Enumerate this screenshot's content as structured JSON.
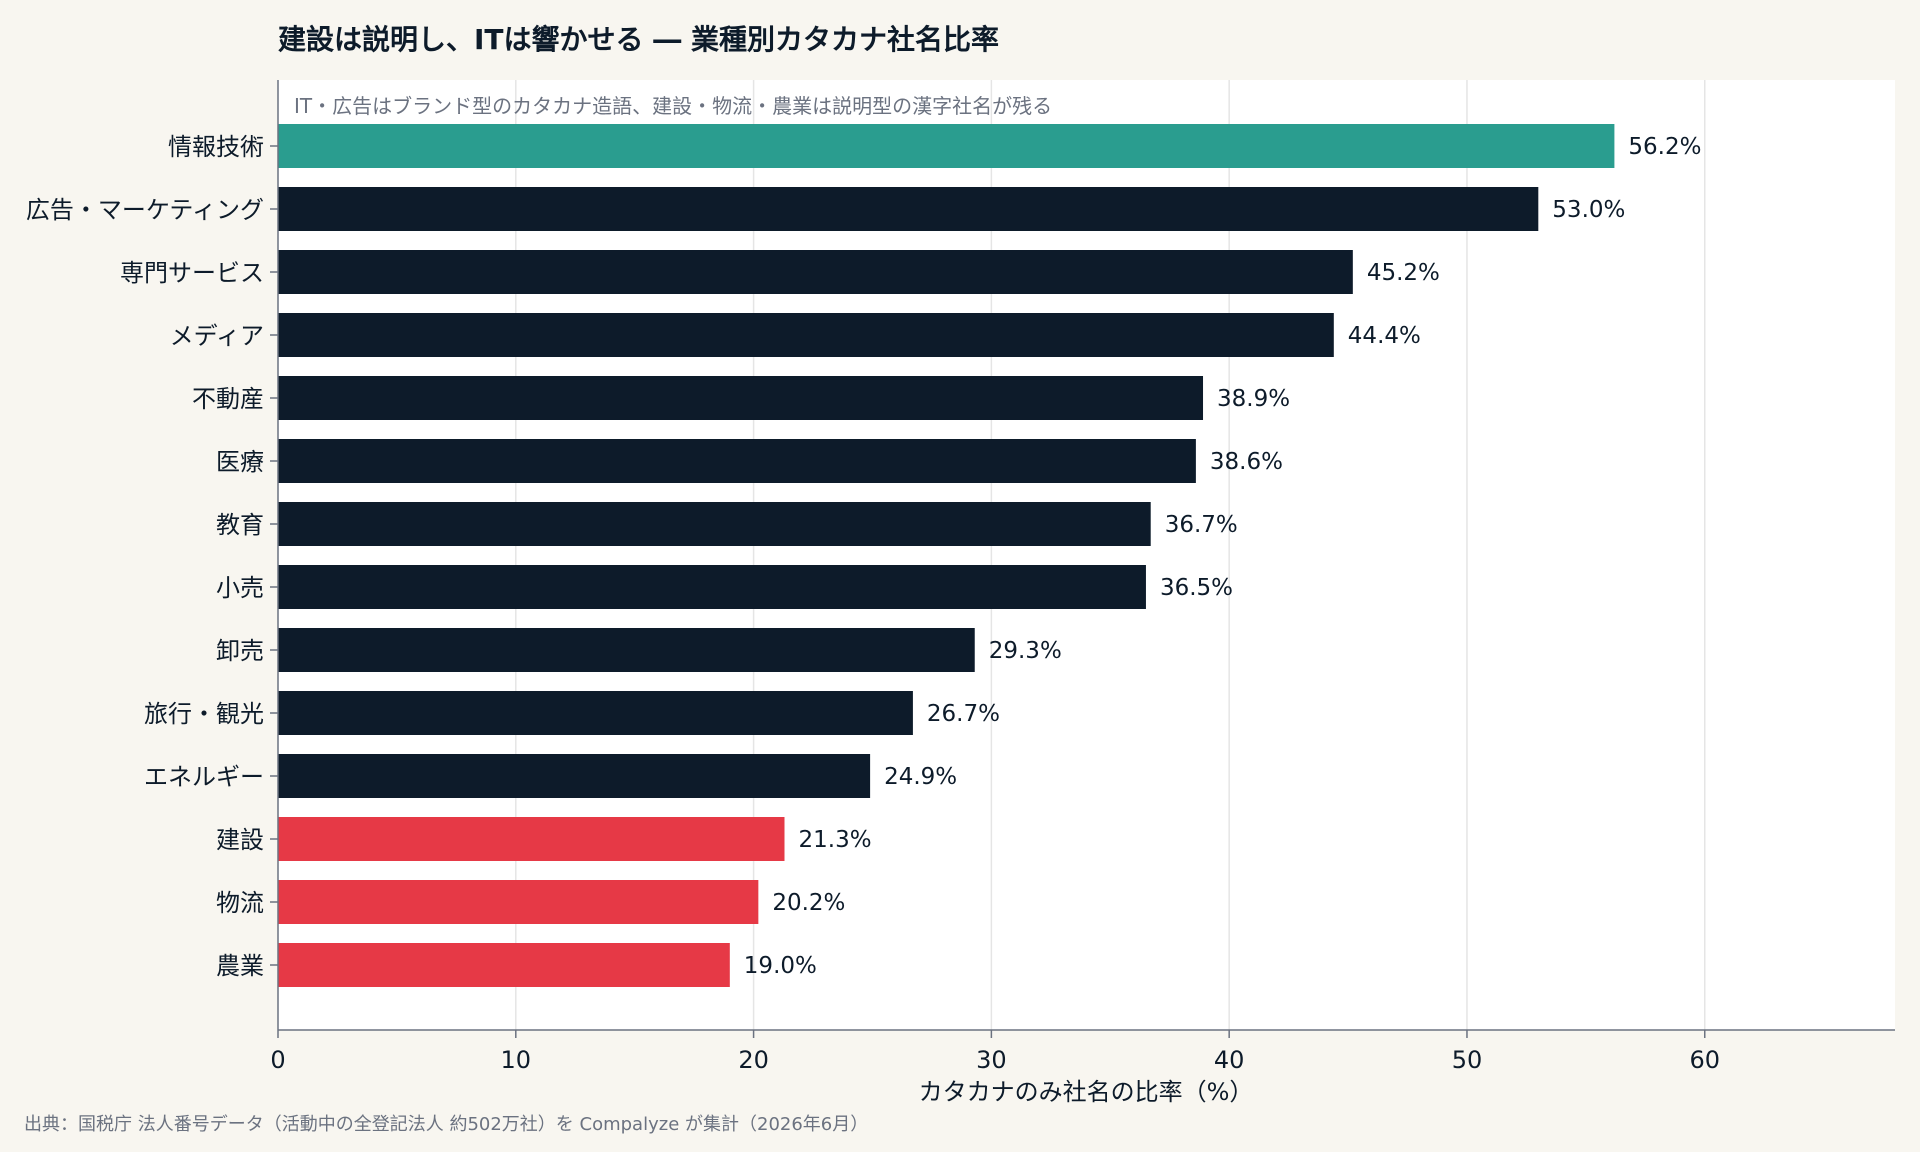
{
  "chart_data": {
    "type": "bar",
    "orientation": "horizontal",
    "title": "建設は説明し、ITは響かせる ― 業種別カタカナ社名比率",
    "subtitle": "IT・広告はブランド型のカタカナ造語、建設・物流・農業は説明型の漢字社名が残る",
    "xlabel": "カタカナのみ社名の比率（%）",
    "ylabel": "",
    "xlim": [
      0,
      68
    ],
    "xticks": [
      0,
      10,
      20,
      30,
      40,
      50,
      60
    ],
    "xtick_labels": [
      "0",
      "10",
      "20",
      "30",
      "40",
      "50",
      "60"
    ],
    "grid": "vertical",
    "categories": [
      "情報技術",
      "広告・マーケティング",
      "専門サービス",
      "メディア",
      "不動産",
      "医療",
      "教育",
      "小売",
      "卸売",
      "旅行・観光",
      "エネルギー",
      "建設",
      "物流",
      "農業"
    ],
    "values": [
      56.2,
      53.0,
      45.2,
      44.4,
      38.9,
      38.6,
      36.7,
      36.5,
      29.3,
      26.7,
      24.9,
      21.3,
      20.2,
      19.0
    ],
    "value_labels": [
      "56.2%",
      "53.0%",
      "45.2%",
      "44.4%",
      "38.9%",
      "38.6%",
      "36.7%",
      "36.5%",
      "29.3%",
      "26.7%",
      "24.9%",
      "21.3%",
      "20.2%",
      "19.0%"
    ],
    "bar_colors": [
      "#2a9d8f",
      "#0d1b2a",
      "#0d1b2a",
      "#0d1b2a",
      "#0d1b2a",
      "#0d1b2a",
      "#0d1b2a",
      "#0d1b2a",
      "#0d1b2a",
      "#0d1b2a",
      "#0d1b2a",
      "#e63946",
      "#e63946",
      "#e63946"
    ]
  },
  "source": "出典：国税庁 法人番号データ（活動中の全登記法人 約502万社）を Compalyze が集計（2026年6月）",
  "colors": {
    "background": "#f8f6f0",
    "plot_background": "#ffffff",
    "highlight_top": "#2a9d8f",
    "default_bar": "#0d1b2a",
    "highlight_bottom": "#e63946",
    "grid": "#e5e5e5",
    "axis": "#6b7280"
  }
}
